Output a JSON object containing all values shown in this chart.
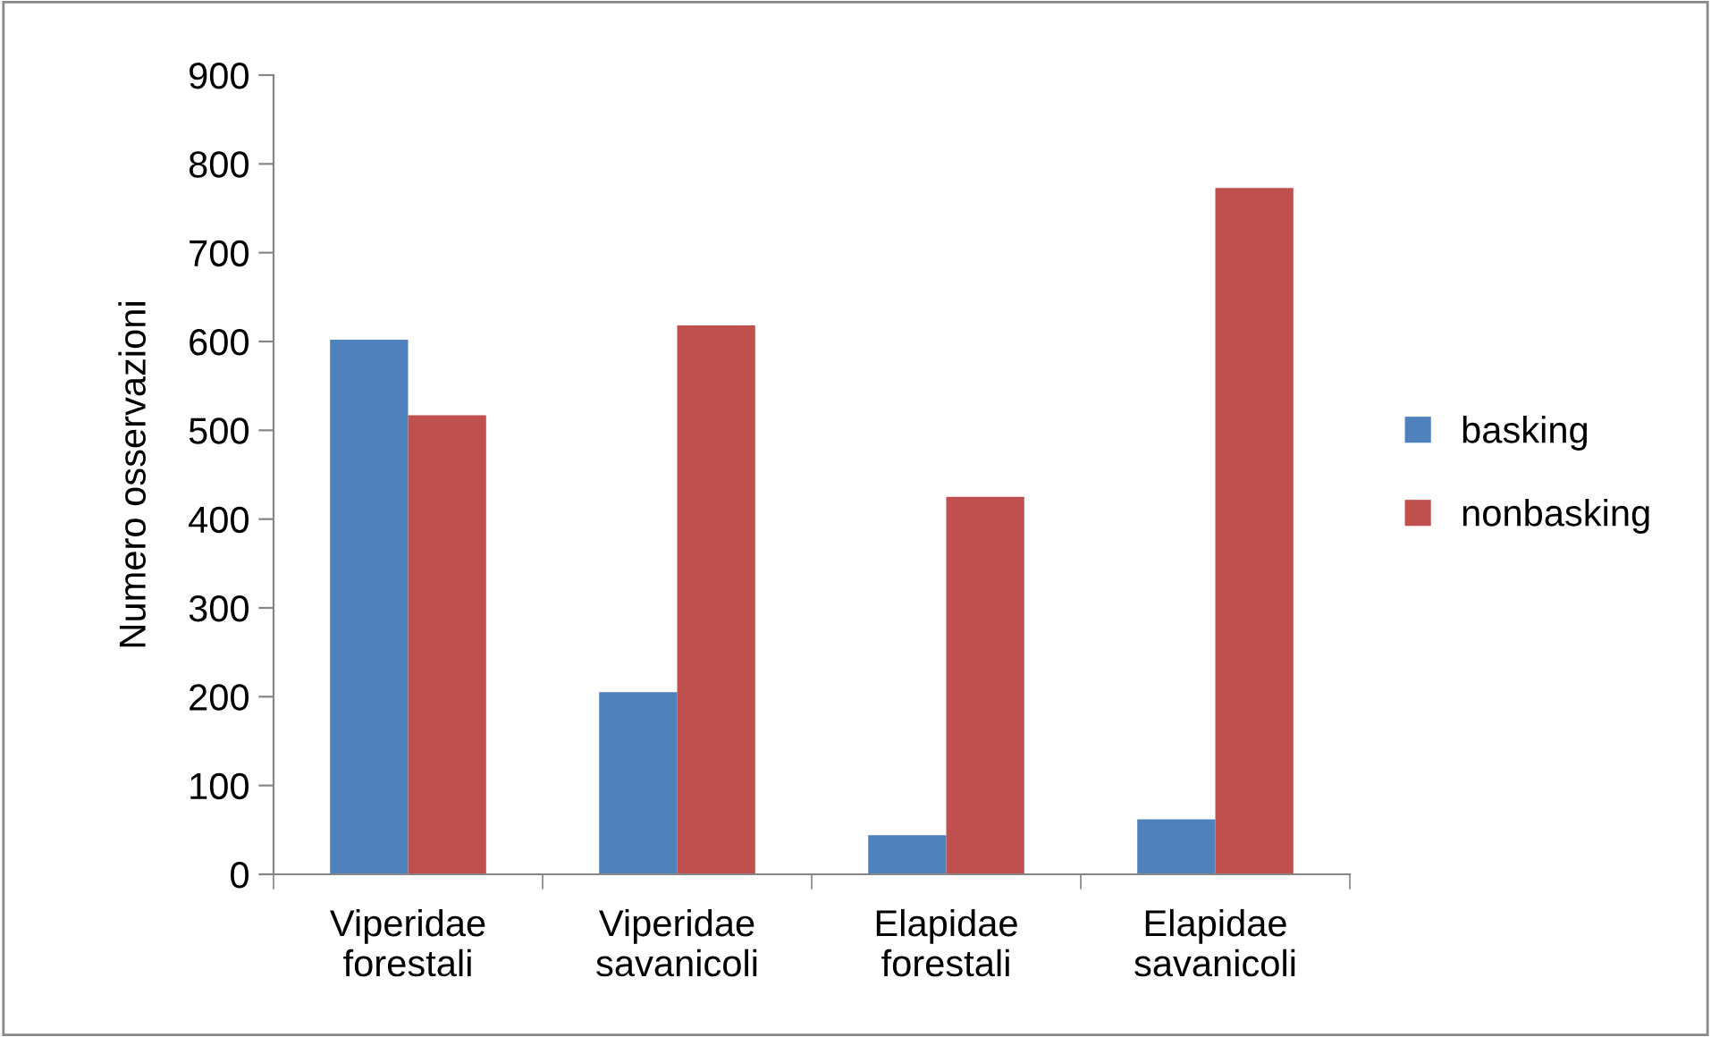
{
  "chart_data": {
    "type": "bar",
    "ylabel": "Numero osservazioni",
    "categories": [
      "Viperidae forestali",
      "Viperidae savanicoli",
      "Elapidae forestali",
      "Elapidae savanicoli"
    ],
    "series": [
      {
        "name": "basking",
        "color": "#4f81bd",
        "values": [
          602,
          205,
          44,
          62
        ]
      },
      {
        "name": "nonbasking",
        "color": "#c0504d",
        "values": [
          517,
          618,
          425,
          773
        ]
      }
    ],
    "ylim": [
      0,
      900
    ],
    "yticks": [
      0,
      100,
      200,
      300,
      400,
      500,
      600,
      700,
      800,
      900
    ],
    "grid": false,
    "legend": "right"
  }
}
